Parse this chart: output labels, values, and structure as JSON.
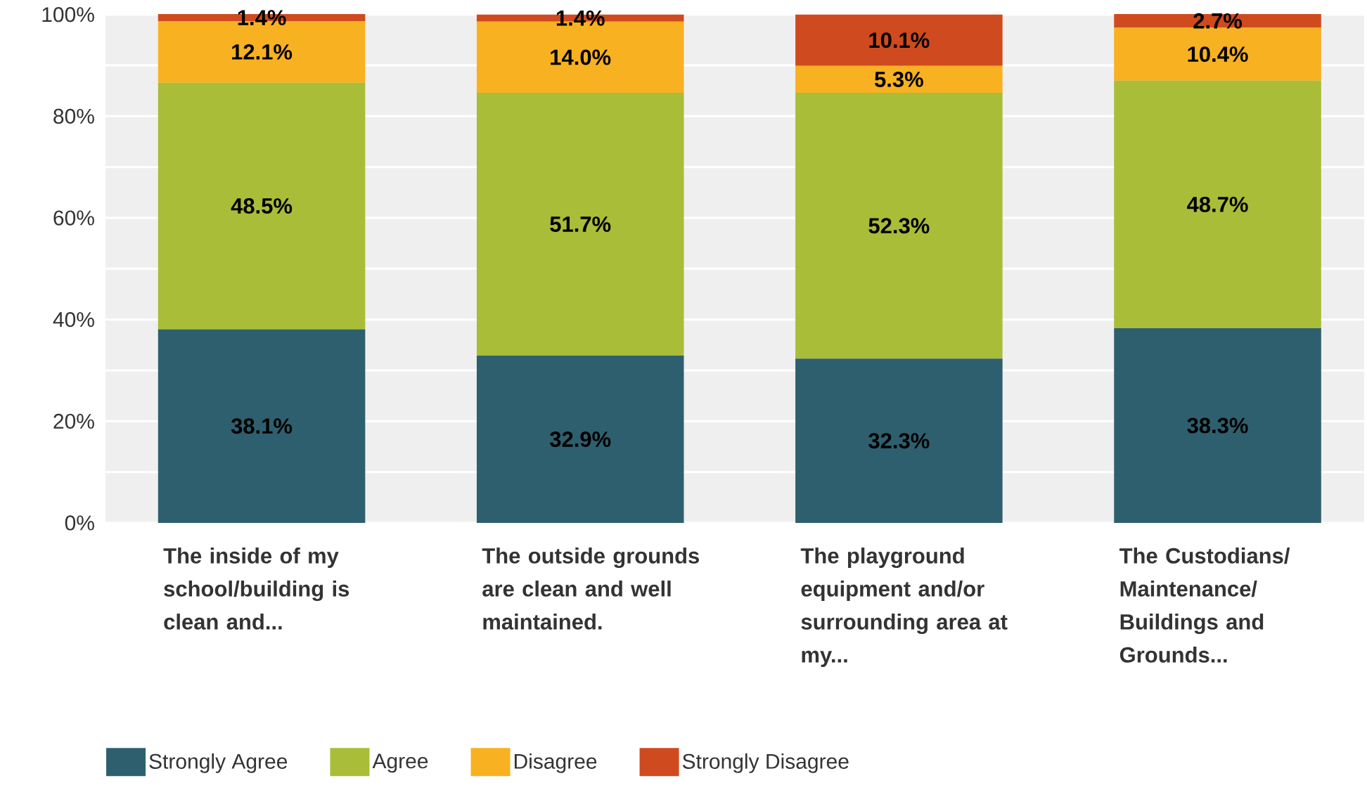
{
  "chart_data": {
    "type": "bar",
    "stacked": true,
    "categories": [
      "The inside of my school/building is clean and...",
      "The outside grounds are clean and well maintained.",
      "The playground equipment and/or surrounding area at my...",
      "The Custodians/Maintenance/Buildings and Grounds..."
    ],
    "series": [
      {
        "name": "Strongly Agree",
        "color": "#2e5f6e",
        "values": [
          38.1,
          32.9,
          32.3,
          38.3
        ],
        "value_labels": [
          "38.1%",
          "32.9%",
          "32.3%",
          "38.3%"
        ]
      },
      {
        "name": "Agree",
        "color": "#a9bd38",
        "values": [
          48.5,
          51.7,
          52.3,
          48.7
        ],
        "value_labels": [
          "48.5%",
          "51.7%",
          "52.3%",
          "48.7%"
        ]
      },
      {
        "name": "Disagree",
        "color": "#f8b120",
        "values": [
          12.1,
          14.0,
          5.3,
          10.4
        ],
        "value_labels": [
          "12.1%",
          "14.0%",
          "5.3%",
          "10.4%"
        ]
      },
      {
        "name": "Strongly Disagree",
        "color": "#d04a1f",
        "values": [
          1.4,
          1.4,
          10.1,
          2.7
        ],
        "value_labels": [
          "1.4%",
          "1.4%",
          "10.1%",
          "2.7%"
        ]
      }
    ],
    "ylim": [
      0,
      100.1
    ],
    "yticks": [
      {
        "value": 0,
        "label": "0%"
      },
      {
        "value": 10,
        "label": null
      },
      {
        "value": 20,
        "label": "20%"
      },
      {
        "value": 30,
        "label": null
      },
      {
        "value": 40,
        "label": "40%"
      },
      {
        "value": 50,
        "label": null
      },
      {
        "value": 60,
        "label": "60%"
      },
      {
        "value": 70,
        "label": null
      },
      {
        "value": 80,
        "label": "80%"
      },
      {
        "value": 90,
        "label": null
      },
      {
        "value": 100,
        "label": "100%"
      }
    ],
    "grid": "y",
    "legend": "bottom"
  }
}
